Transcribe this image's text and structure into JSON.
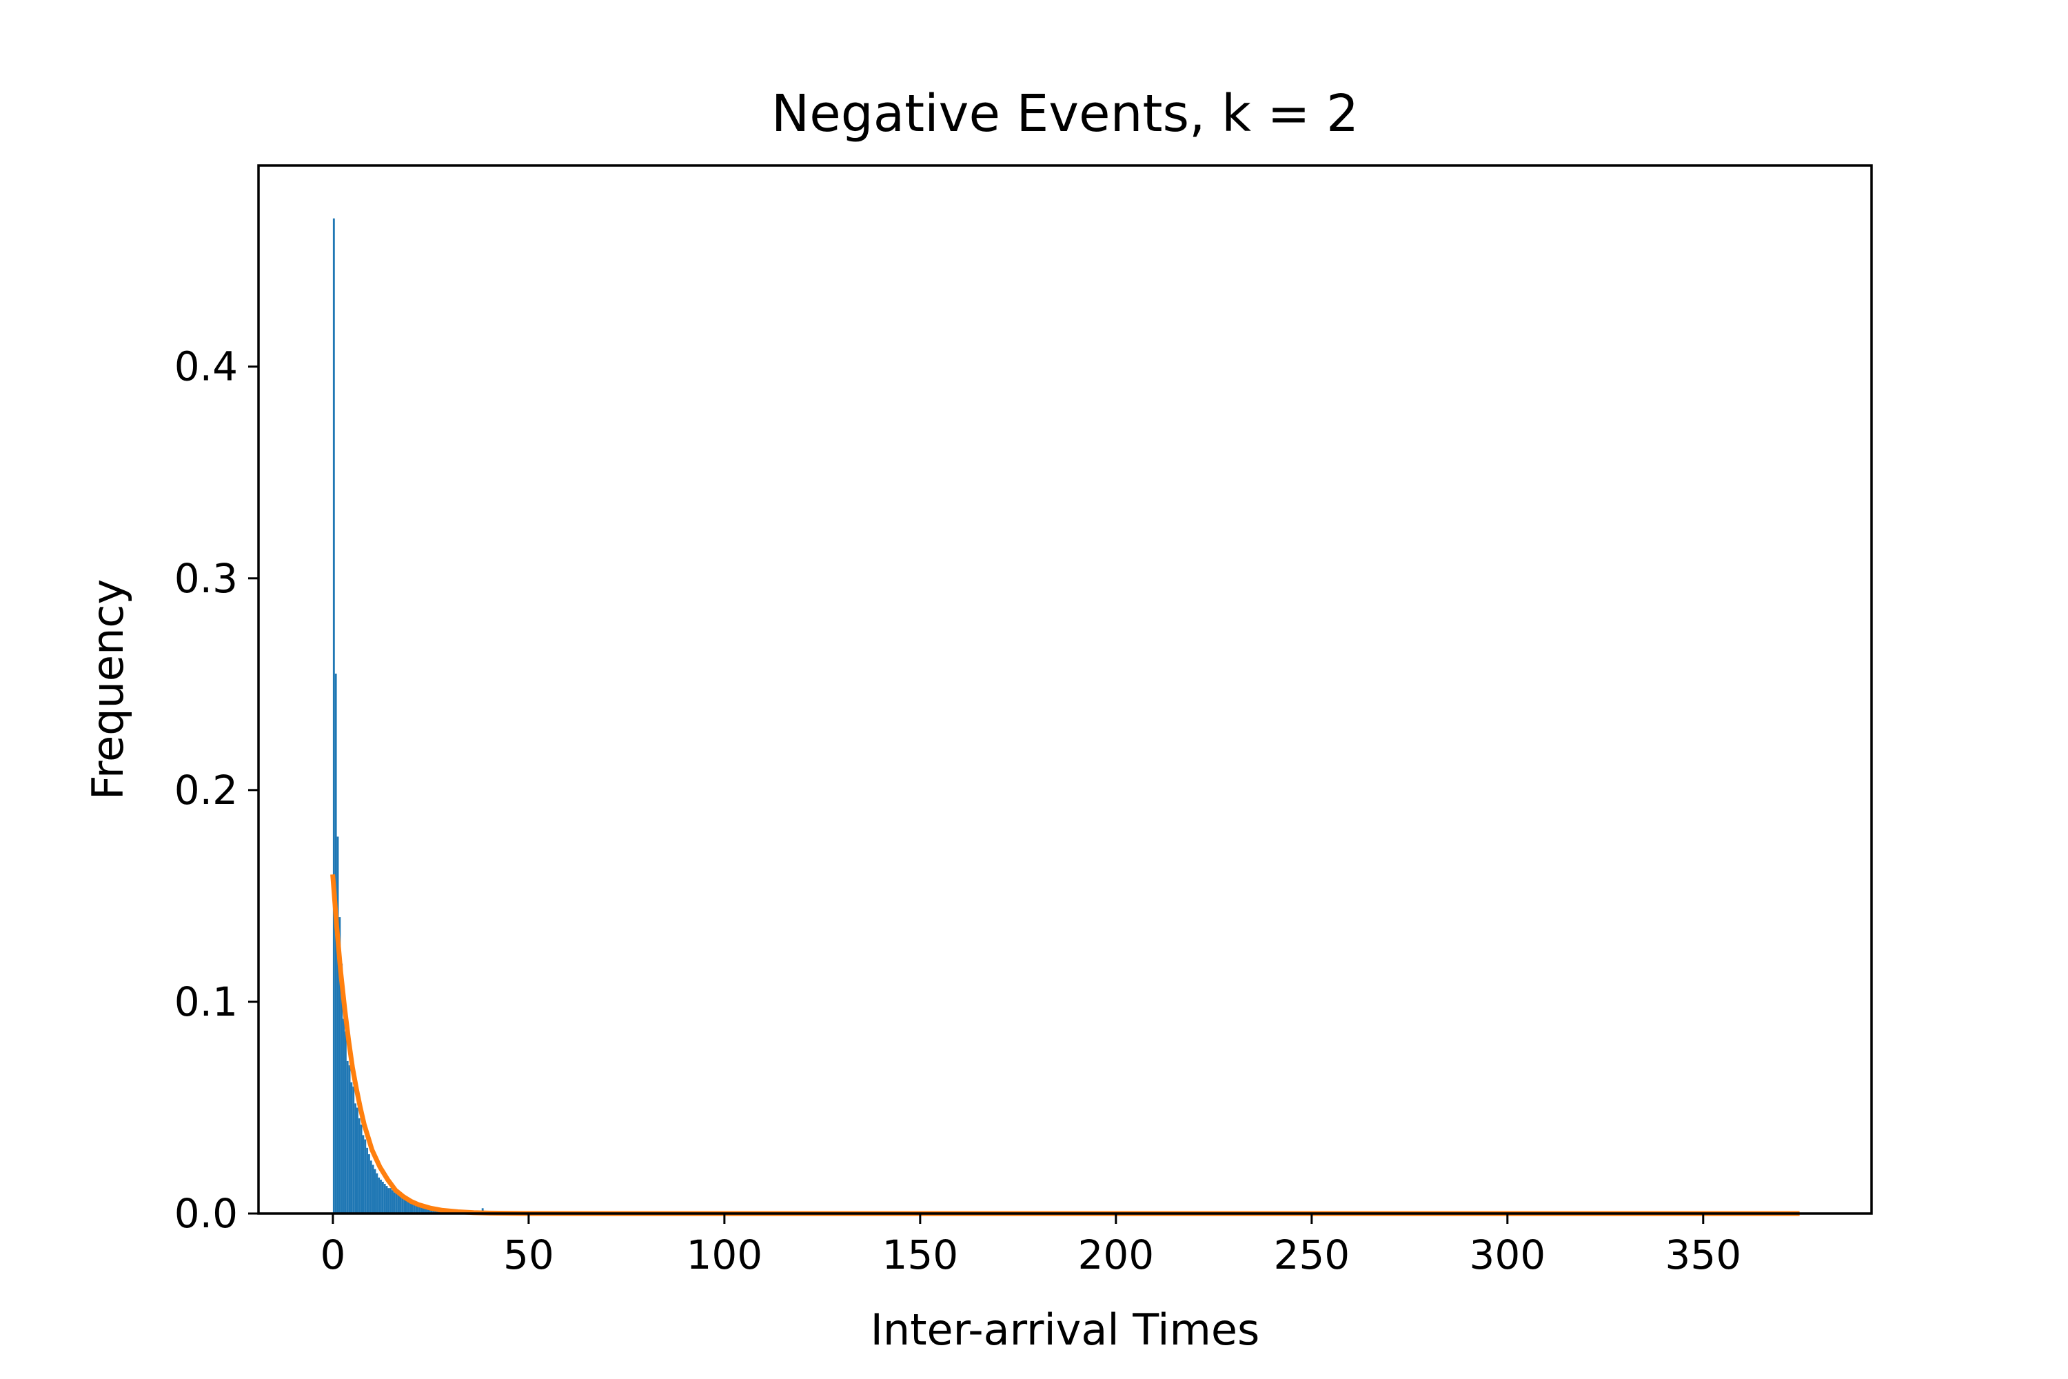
{
  "chart_data": {
    "type": "bar",
    "title": "Negative Events, k = 2",
    "xlabel": "Inter-arrival Times",
    "ylabel": "Frequency",
    "xlim": [
      -19,
      393
    ],
    "ylim": [
      0,
      0.495
    ],
    "xticks": [
      0,
      50,
      100,
      150,
      200,
      250,
      300,
      350
    ],
    "xtick_labels": [
      "0",
      "50",
      "100",
      "150",
      "200",
      "250",
      "300",
      "350"
    ],
    "yticks": [
      0.0,
      0.1,
      0.2,
      0.3,
      0.4
    ],
    "ytick_labels": [
      "0.0",
      "0.1",
      "0.2",
      "0.3",
      "0.4"
    ],
    "grid": false,
    "legend": "none",
    "series": [
      {
        "kind": "histogram",
        "color": "#1f77b4",
        "bin_width": 0.5,
        "bins": [
          [
            0.0,
            0.47
          ],
          [
            0.5,
            0.255
          ],
          [
            1.0,
            0.178
          ],
          [
            1.5,
            0.14
          ],
          [
            2.0,
            0.118
          ],
          [
            2.5,
            0.092
          ],
          [
            3.0,
            0.086
          ],
          [
            3.5,
            0.072
          ],
          [
            4.0,
            0.07
          ],
          [
            4.5,
            0.062
          ],
          [
            5.0,
            0.06
          ],
          [
            5.5,
            0.052
          ],
          [
            6.0,
            0.05
          ],
          [
            6.5,
            0.045
          ],
          [
            7.0,
            0.042
          ],
          [
            7.5,
            0.037
          ],
          [
            8.0,
            0.035
          ],
          [
            8.5,
            0.031
          ],
          [
            9.0,
            0.028
          ],
          [
            9.5,
            0.025
          ],
          [
            10.0,
            0.023
          ],
          [
            10.5,
            0.021
          ],
          [
            11.0,
            0.019
          ],
          [
            11.5,
            0.017
          ],
          [
            12.0,
            0.016
          ],
          [
            12.5,
            0.015
          ],
          [
            13.0,
            0.014
          ],
          [
            13.5,
            0.013
          ],
          [
            14.0,
            0.012
          ],
          [
            14.5,
            0.012
          ],
          [
            15.0,
            0.011
          ],
          [
            15.5,
            0.01
          ],
          [
            16.0,
            0.01
          ],
          [
            16.5,
            0.009
          ],
          [
            17.0,
            0.009
          ],
          [
            17.5,
            0.008
          ],
          [
            18.0,
            0.008
          ],
          [
            18.5,
            0.007
          ],
          [
            19.0,
            0.007
          ],
          [
            19.5,
            0.006
          ],
          [
            20.0,
            0.006
          ],
          [
            20.5,
            0.005
          ],
          [
            21.0,
            0.005
          ],
          [
            21.5,
            0.004
          ],
          [
            22.0,
            0.004
          ],
          [
            22.5,
            0.004
          ],
          [
            23.0,
            0.003
          ],
          [
            23.5,
            0.003
          ],
          [
            24.0,
            0.003
          ],
          [
            24.5,
            0.002
          ],
          [
            25.0,
            0.002
          ],
          [
            25.5,
            0.002
          ],
          [
            26.0,
            0.002
          ],
          [
            26.5,
            0.0015
          ],
          [
            27.0,
            0.0015
          ],
          [
            27.5,
            0.0012
          ],
          [
            28.0,
            0.0012
          ],
          [
            28.5,
            0.001
          ],
          [
            29.0,
            0.001
          ],
          [
            29.5,
            0.0008
          ],
          [
            30.0,
            0.0008
          ],
          [
            31.0,
            0.0006
          ],
          [
            32.0,
            0.0005
          ],
          [
            33.0,
            0.0004
          ],
          [
            34.0,
            0.0003
          ],
          [
            35.0,
            0.0003
          ],
          [
            36.0,
            0.0002
          ],
          [
            37.0,
            0.0002
          ],
          [
            38.0,
            0.0025
          ],
          [
            39.0,
            0.0002
          ],
          [
            41.0,
            0.0001
          ],
          [
            44.0,
            0.0001
          ],
          [
            47.0,
            0.0001
          ]
        ]
      },
      {
        "kind": "line",
        "color": "#ff7f0e",
        "x": [
          0,
          1,
          2,
          3,
          4,
          5,
          6,
          7,
          8,
          9,
          10,
          12,
          14,
          16,
          18,
          20,
          22,
          25,
          28,
          32,
          36,
          40,
          50,
          75,
          100,
          150,
          200,
          250,
          300,
          350,
          374
        ],
        "y": [
          0.159,
          0.135,
          0.114,
          0.097,
          0.082,
          0.069,
          0.059,
          0.05,
          0.042,
          0.036,
          0.03,
          0.022,
          0.016,
          0.011,
          0.008,
          0.0057,
          0.0041,
          0.0025,
          0.0015,
          0.0008,
          0.0004,
          0.0002,
          3e-05,
          0.0,
          0.0,
          0.0,
          0.0,
          0.0,
          0.0,
          0.0,
          0.0
        ]
      }
    ]
  }
}
